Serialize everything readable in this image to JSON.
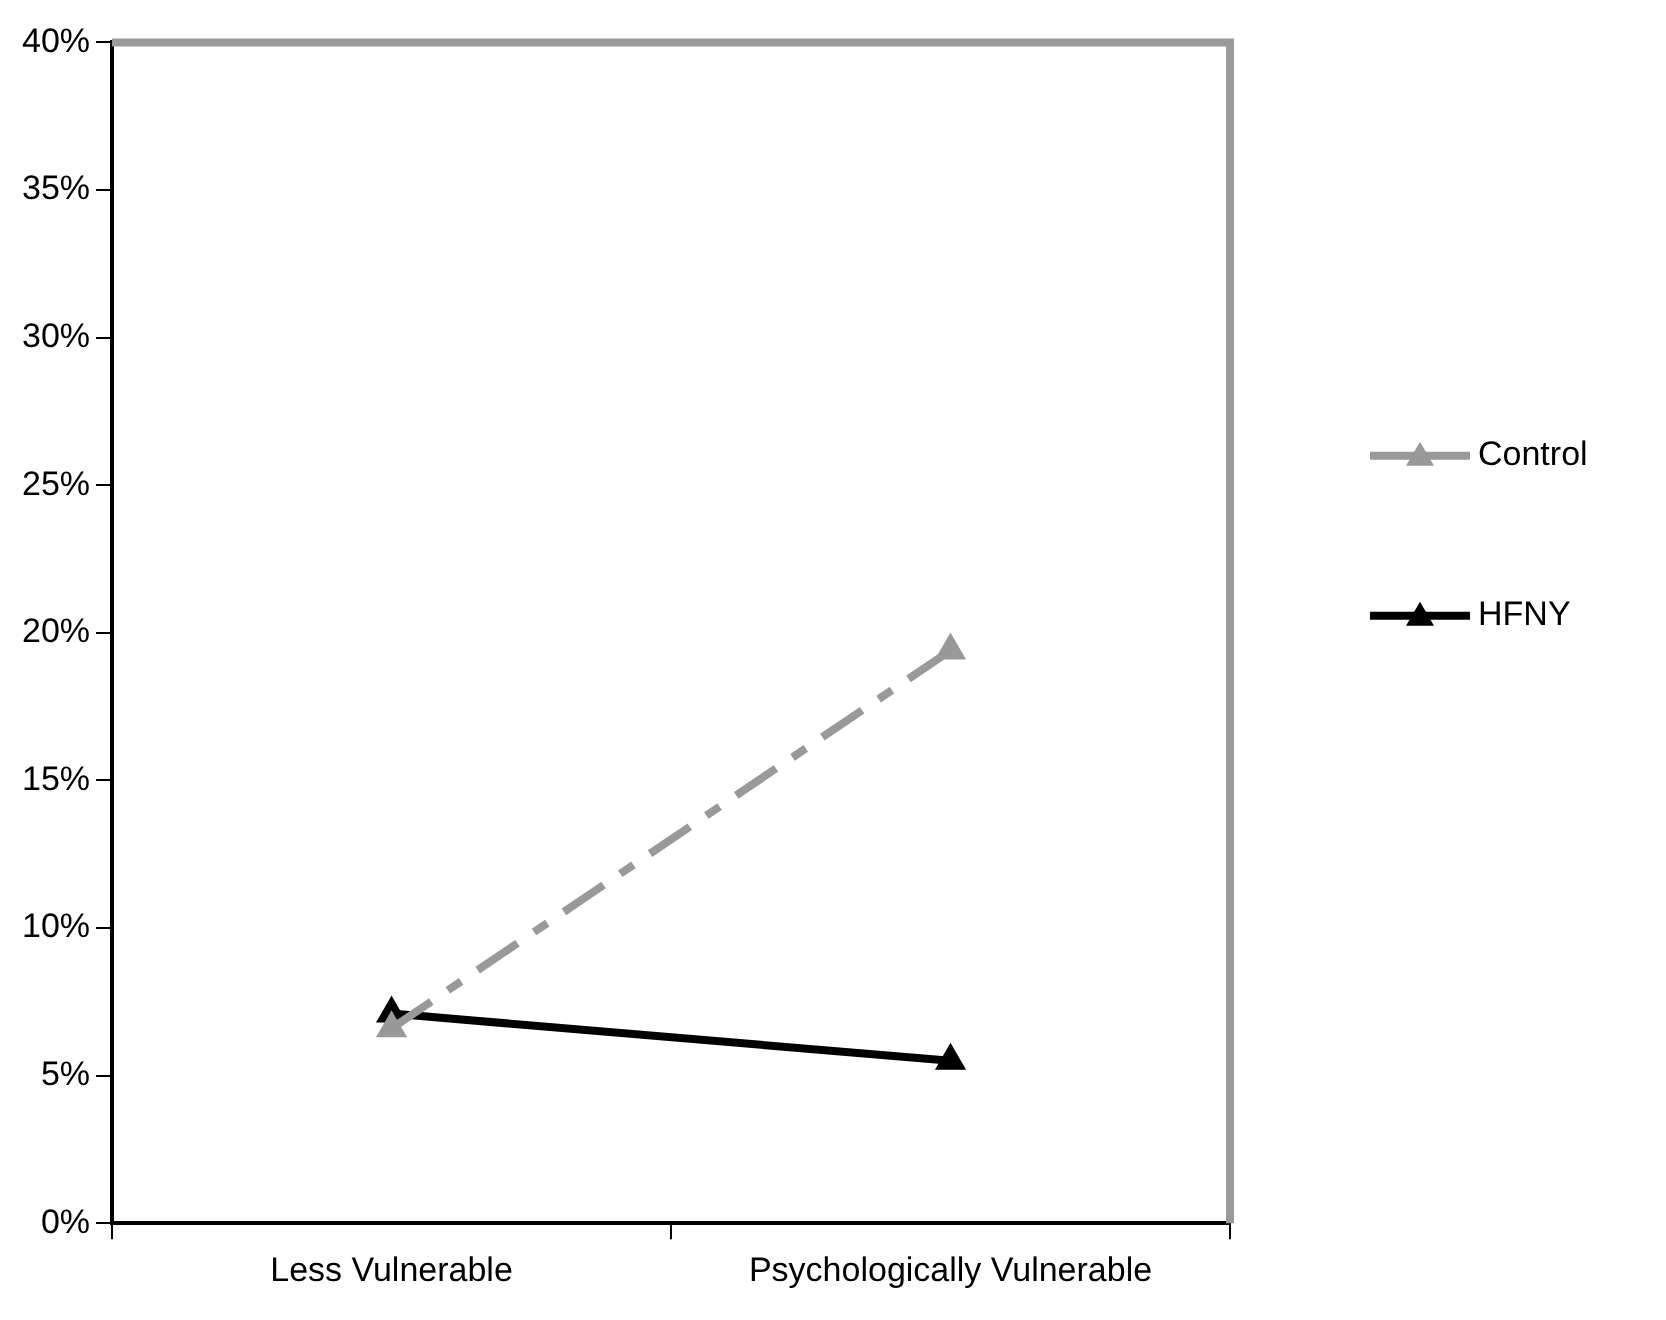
{
  "chart_data": {
    "type": "line",
    "categories": [
      "Less Vulnerable",
      "Psychologically Vulnerable"
    ],
    "series": [
      {
        "name": "Control",
        "color": "#999999",
        "values": [
          6.6,
          19.4
        ],
        "line_style": "dashed"
      },
      {
        "name": "HFNY",
        "color": "#000000",
        "values": [
          7.1,
          5.5
        ],
        "line_style": "solid"
      }
    ],
    "ylim": [
      0,
      40
    ],
    "yticks": [
      {
        "value": 0,
        "label": "0%"
      },
      {
        "value": 5,
        "label": "5%"
      },
      {
        "value": 10,
        "label": "10%"
      },
      {
        "value": 15,
        "label": "15%"
      },
      {
        "value": 20,
        "label": "20%"
      },
      {
        "value": 25,
        "label": "25%"
      },
      {
        "value": 30,
        "label": "30%"
      },
      {
        "value": 35,
        "label": "35%"
      },
      {
        "value": 40,
        "label": "40%"
      }
    ],
    "grid": false,
    "legend": "right",
    "marker": "triangle"
  }
}
